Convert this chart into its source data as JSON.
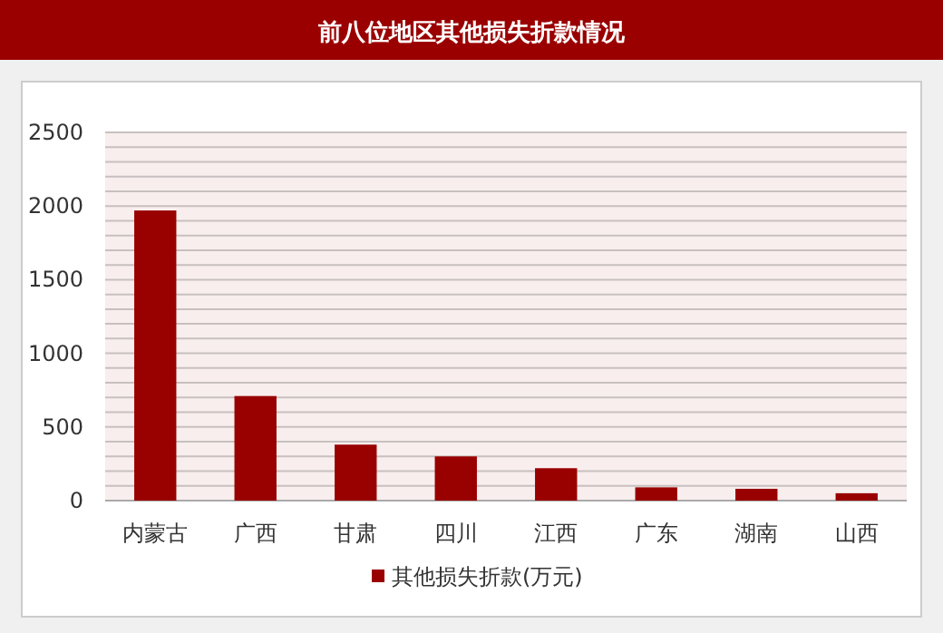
{
  "chart_data": {
    "type": "bar",
    "title": "前八位地区其他损失折款情况",
    "categories": [
      "内蒙古",
      "广西",
      "甘肃",
      "四川",
      "江西",
      "广东",
      "湖南",
      "山西"
    ],
    "series": [
      {
        "name": "其他损失折款(万元)",
        "color": "#990000",
        "values": [
          1970,
          710,
          380,
          300,
          220,
          90,
          80,
          50
        ]
      }
    ],
    "ylim": [
      0,
      2500
    ],
    "yticks": [
      0,
      {
        "value": 100,
        "label": null
      },
      {
        "value": 200,
        "label": null
      },
      {
        "value": 300,
        "label": null
      },
      {
        "value": 400,
        "label": null
      },
      500,
      {
        "value": 600,
        "label": null
      },
      {
        "value": 700,
        "label": null
      },
      {
        "value": 800,
        "label": null
      },
      {
        "value": 900,
        "label": null
      },
      1000,
      {
        "value": 1100,
        "label": null
      },
      {
        "value": 1200,
        "label": null
      },
      {
        "value": 1300,
        "label": null
      },
      {
        "value": 1400,
        "label": null
      },
      1500,
      {
        "value": 1600,
        "label": null
      },
      {
        "value": 1700,
        "label": null
      },
      {
        "value": 1800,
        "label": null
      },
      {
        "value": 1900,
        "label": null
      },
      2000,
      {
        "value": 2100,
        "label": null
      },
      {
        "value": 2200,
        "label": null
      },
      {
        "value": 2300,
        "label": null
      },
      {
        "value": 2400,
        "label": null
      },
      2500
    ],
    "grid": "y",
    "legend": "bottom"
  }
}
